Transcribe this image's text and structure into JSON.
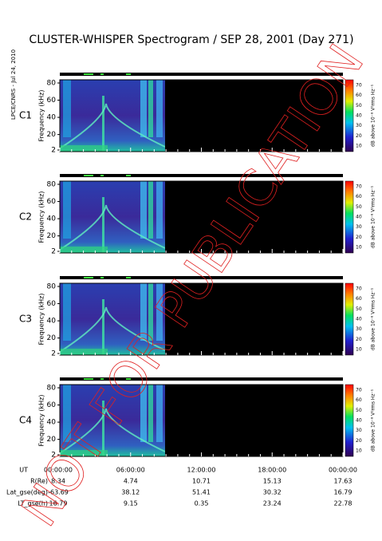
{
  "title": "CLUSTER-WHISPER Spectrogram / SEP 28, 2001 (Day 271)",
  "side_label": "LPCE/CNRS - Jul 24, 2010",
  "watermark": "NOT FOR PUBLICATION",
  "panels": [
    {
      "label": "C1"
    },
    {
      "label": "C2"
    },
    {
      "label": "C3"
    },
    {
      "label": "C4"
    }
  ],
  "y_axis_label": "Frequency (kHz)",
  "y_ticks": [
    "2",
    "20",
    "40",
    "60",
    "80"
  ],
  "colorbar_label": "dB above 10⁻⁸ V²rms Hz⁻¹",
  "colorbar_ticks": [
    "10",
    "20",
    "30",
    "40",
    "50",
    "60",
    "70"
  ],
  "ephemeris": {
    "labels": [
      "UT",
      "R(Re)",
      "Lat_gse(deg)",
      "LT_gse(h)"
    ],
    "rows": [
      [
        "00:00:00",
        "06:00:00",
        "12:00:00",
        "18:00:00",
        "00:00:00"
      ],
      [
        "8.34",
        "4.74",
        "10.71",
        "15.13",
        "17.63"
      ],
      [
        "-63.69",
        "38.12",
        "51.41",
        "30.32",
        "16.79"
      ],
      [
        "16.79",
        "9.15",
        "0.35",
        "23.24",
        "22.78"
      ]
    ]
  }
}
